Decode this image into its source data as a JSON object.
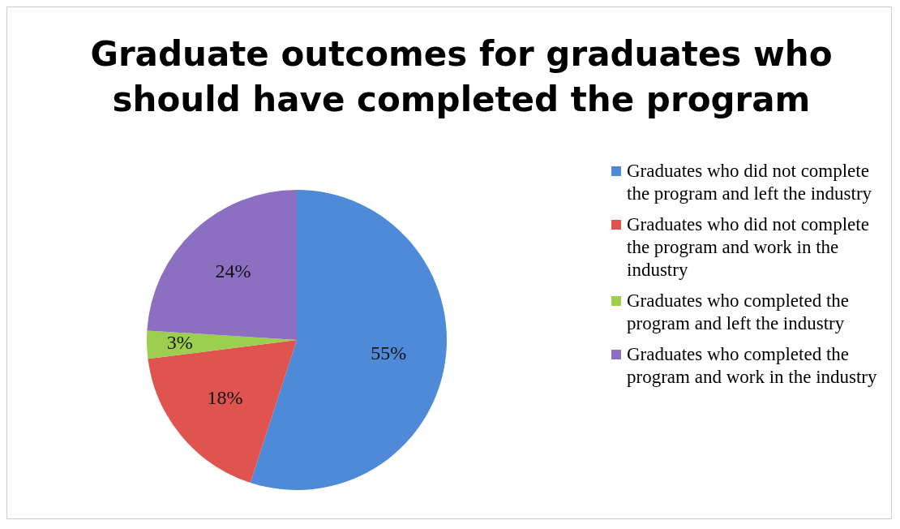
{
  "chart_data": {
    "type": "pie",
    "title": "Graduate outcomes for graduates who should have completed the program",
    "categories": [
      "Graduates who did not complete the program and left the industry",
      "Graduates who did not complete the program and work in the industry",
      "Graduates who completed the program and left the industry",
      "Graduates who completed the program and work in the industry"
    ],
    "values": [
      55,
      18,
      3,
      24
    ],
    "colors": [
      "#4f8ad9",
      "#e0544f",
      "#9ccf4e",
      "#8d6fc2"
    ],
    "value_labels": [
      "55%",
      "18%",
      "3%",
      "24%"
    ],
    "legend": "right"
  }
}
